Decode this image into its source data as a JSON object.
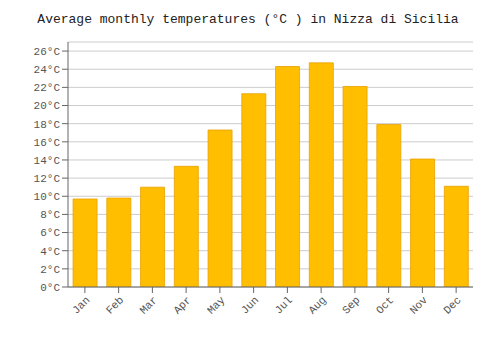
{
  "chart_data": {
    "type": "bar",
    "title": "Average monthly temperatures (°C ) in Nizza di Sicilia",
    "categories": [
      "Jan",
      "Feb",
      "Mar",
      "Apr",
      "May",
      "Jun",
      "Jul",
      "Aug",
      "Sep",
      "Oct",
      "Nov",
      "Dec"
    ],
    "values": [
      9.7,
      9.8,
      11.0,
      13.3,
      17.3,
      21.3,
      24.3,
      24.7,
      22.1,
      17.9,
      14.1,
      11.1
    ],
    "color": "#FFBF00",
    "ylim": [
      0,
      27
    ],
    "yticks": [
      {
        "value": 0,
        "label": "0°C"
      },
      {
        "value": 2,
        "label": "2°C"
      },
      {
        "value": 4,
        "label": "4°C"
      },
      {
        "value": 6,
        "label": "6°C"
      },
      {
        "value": 8,
        "label": "8°C"
      },
      {
        "value": 10,
        "label": "10°C"
      },
      {
        "value": 12,
        "label": "12°C"
      },
      {
        "value": 14,
        "label": "14°C"
      },
      {
        "value": 16,
        "label": "16°C"
      },
      {
        "value": 18,
        "label": "18°C"
      },
      {
        "value": 20,
        "label": "20°C"
      },
      {
        "value": 22,
        "label": "22°C"
      },
      {
        "value": 24,
        "label": "24°C"
      },
      {
        "value": 26,
        "label": "26°C"
      }
    ],
    "grid": true
  }
}
